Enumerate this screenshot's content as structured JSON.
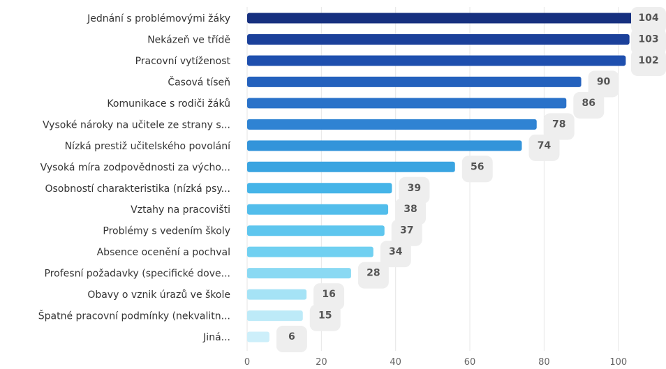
{
  "chart_data": {
    "type": "bar",
    "orientation": "horizontal",
    "title": "",
    "xlabel": "",
    "ylabel": "",
    "xlim": [
      0,
      104
    ],
    "x_ticks": [
      0,
      20,
      40,
      60,
      80,
      100
    ],
    "grid": true,
    "categories": [
      "Jednání s problémovými žáky",
      "Nekázeň ve třídě",
      "Pracovní vytíženost",
      "Časová tíseň",
      "Komunikace s rodiči žáků",
      "Vysoké nároky na učitele ze strany s...",
      "Nízká prestiž učitelského povolání",
      "Vysoká míra zodpovědnosti za výcho...",
      "Osobností charakteristika (nízká psy...",
      "Vztahy na pracovišti",
      "Problémy s vedením školy",
      "Absence ocenění a pochval",
      "Profesní požadavky (specifické dove...",
      "Obavy o vznik úrazů ve škole",
      "Špatné pracovní podmínky (nekvalitn...",
      "Jiná..."
    ],
    "values": [
      104,
      103,
      102,
      90,
      86,
      78,
      74,
      56,
      39,
      38,
      37,
      34,
      28,
      16,
      15,
      6
    ],
    "colors": [
      "#16307f",
      "#1b409a",
      "#1e4fae",
      "#2461bd",
      "#2a72c9",
      "#2f83d3",
      "#3394da",
      "#39a4e1",
      "#45b4e8",
      "#52bdeb",
      "#5ec6ee",
      "#70d0f1",
      "#8ad9f3",
      "#a5e3f6",
      "#bdeaf8",
      "#cdeffa"
    ]
  }
}
